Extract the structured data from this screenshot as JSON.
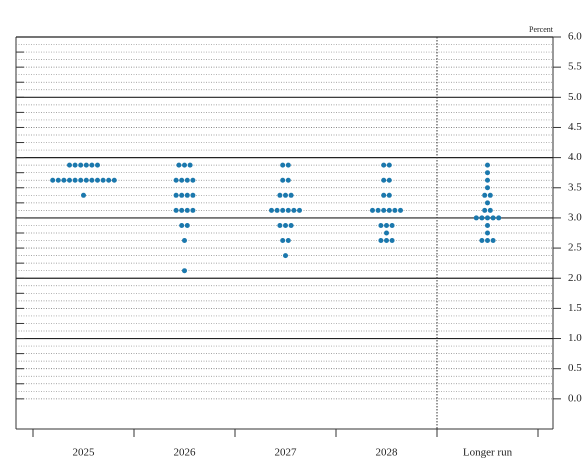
{
  "chart_data": {
    "type": "dot",
    "axis_label": "Percent",
    "categories": [
      "2025",
      "2026",
      "2027",
      "2028",
      "Longer run"
    ],
    "dots": [
      [
        {
          "value": 3.875,
          "count": 6
        },
        {
          "value": 3.625,
          "count": 12
        },
        {
          "value": 3.375,
          "count": 1
        }
      ],
      [
        {
          "value": 3.875,
          "count": 3
        },
        {
          "value": 3.625,
          "count": 4
        },
        {
          "value": 3.375,
          "count": 4
        },
        {
          "value": 3.125,
          "count": 4
        },
        {
          "value": 2.875,
          "count": 2
        },
        {
          "value": 2.625,
          "count": 1
        },
        {
          "value": 2.125,
          "count": 1
        }
      ],
      [
        {
          "value": 3.875,
          "count": 2
        },
        {
          "value": 3.625,
          "count": 2
        },
        {
          "value": 3.375,
          "count": 3
        },
        {
          "value": 3.125,
          "count": 6
        },
        {
          "value": 2.875,
          "count": 3
        },
        {
          "value": 2.625,
          "count": 2
        },
        {
          "value": 2.375,
          "count": 1
        }
      ],
      [
        {
          "value": 3.875,
          "count": 2
        },
        {
          "value": 3.625,
          "count": 2
        },
        {
          "value": 3.375,
          "count": 2
        },
        {
          "value": 3.125,
          "count": 6
        },
        {
          "value": 2.875,
          "count": 3
        },
        {
          "value": 2.75,
          "count": 1
        },
        {
          "value": 2.625,
          "count": 3
        }
      ],
      [
        {
          "value": 3.875,
          "count": 1
        },
        {
          "value": 3.75,
          "count": 1
        },
        {
          "value": 3.625,
          "count": 1
        },
        {
          "value": 3.5,
          "count": 1
        },
        {
          "value": 3.375,
          "count": 2
        },
        {
          "value": 3.25,
          "count": 1
        },
        {
          "value": 3.125,
          "count": 2
        },
        {
          "value": 3.0,
          "count": 5
        },
        {
          "value": 2.875,
          "count": 1
        },
        {
          "value": 2.75,
          "count": 1
        },
        {
          "value": 2.625,
          "count": 3
        }
      ]
    ],
    "color": "#1b78ad",
    "ylim": [
      -0.5,
      6.0
    ],
    "yticks": [
      {
        "value": 0,
        "label": "0.0"
      },
      {
        "value": 0.5,
        "label": "0.5"
      },
      {
        "value": 1,
        "label": "1.0"
      },
      {
        "value": 1.5,
        "label": "1.5"
      },
      {
        "value": 2,
        "label": "2.0"
      },
      {
        "value": 2.5,
        "label": "2.5"
      },
      {
        "value": 3,
        "label": "3.0"
      },
      {
        "value": 3.5,
        "label": "3.5"
      },
      {
        "value": 4,
        "label": "4.0"
      },
      {
        "value": 4.5,
        "label": "4.5"
      },
      {
        "value": 5,
        "label": "5.0"
      },
      {
        "value": 5.5,
        "label": "5.5"
      },
      {
        "value": 6,
        "label": "6.0"
      }
    ],
    "grid": true
  }
}
